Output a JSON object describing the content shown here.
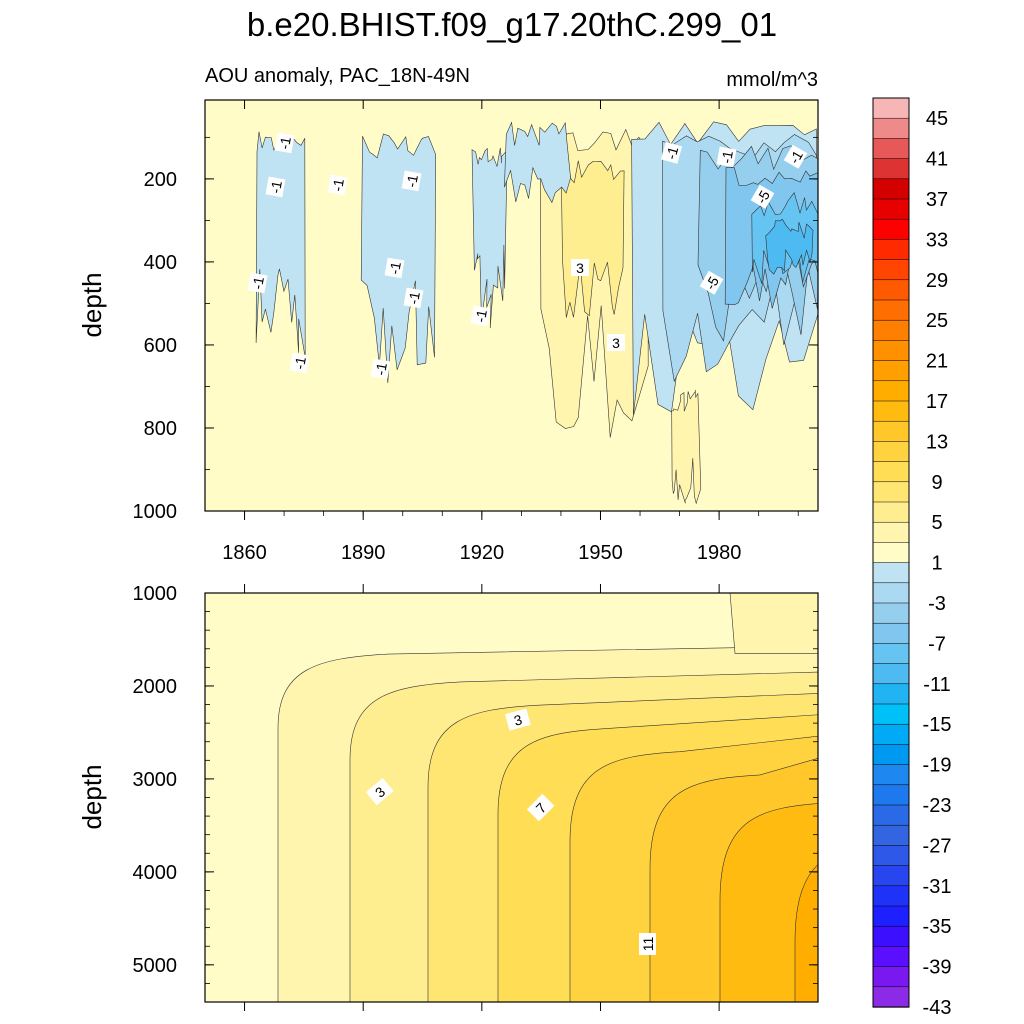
{
  "chart_data": [
    {
      "type": "heatmap",
      "title": "b.e20.BHIST.f09_g17.20thC.299_01",
      "subtitle": "AOU anomaly, PAC_18N-49N",
      "units": "mmol/m^3",
      "ylabel": "depth",
      "x_ticks": [
        "1860",
        "1890",
        "1920",
        "1950",
        "1980"
      ],
      "x_tick_values": [
        1860,
        1890,
        1920,
        1950,
        1980
      ],
      "xlim": [
        1850,
        2005
      ],
      "y_ticks": [
        "200",
        "400",
        "600",
        "800",
        "1000"
      ],
      "y_tick_values": [
        200,
        400,
        600,
        800,
        1000
      ],
      "ylim": [
        1000,
        10
      ],
      "contour_labels": [
        "-1",
        "-1",
        "-1",
        "-1",
        "-1",
        "-1",
        "-1",
        "-1",
        "-1",
        "-1",
        "-1",
        "-1",
        "-1",
        "-5",
        "-5",
        "3",
        "3"
      ],
      "blue_regions": [
        {
          "x0": 1863,
          "x1": 1875,
          "d0": 80,
          "d1": 640
        },
        {
          "x0": 1890,
          "x1": 1908,
          "d0": 90,
          "d1": 700
        },
        {
          "x0": 1918,
          "x1": 1926,
          "d0": 110,
          "d1": 560
        },
        {
          "x0": 1926,
          "x1": 1942,
          "d0": 60,
          "d1": 260
        },
        {
          "x0": 1958,
          "x1": 2005,
          "d0": 60,
          "d1": 840
        }
      ],
      "yellow_regions": [
        {
          "x0": 1935,
          "x1": 1962,
          "d0": 80,
          "d1": 830
        },
        {
          "x0": 1968,
          "x1": 1975,
          "d0": 700,
          "d1": 1000
        }
      ]
    },
    {
      "type": "heatmap",
      "ylabel": "depth",
      "xlim": [
        1850,
        2005
      ],
      "y_ticks": [
        "1000",
        "2000",
        "3000",
        "4000",
        "5000"
      ],
      "y_tick_values": [
        1000,
        2000,
        3000,
        4000,
        5000
      ],
      "ylim": [
        5400,
        1000
      ],
      "contour_labels": [
        "3",
        "3",
        "7",
        "11"
      ],
      "trend": "anomaly increases with time and depth, from 0 near 1850 to about 13 at depth by 2005"
    }
  ],
  "colorbar": {
    "labels": [
      "45",
      "41",
      "37",
      "33",
      "29",
      "25",
      "21",
      "17",
      "13",
      "9",
      "5",
      "1",
      "-3",
      "-7",
      "-11",
      "-15",
      "-19",
      "-23",
      "-27",
      "-31",
      "-35",
      "-39",
      "-43"
    ],
    "colors": [
      "#f7b6b6",
      "#ef8a8a",
      "#e75959",
      "#dd3333",
      "#d40000",
      "#e60000",
      "#ff0000",
      "#ff2a00",
      "#ff4500",
      "#ff5a00",
      "#ff6e00",
      "#ff8000",
      "#ff9000",
      "#ffa000",
      "#ffae00",
      "#ffbb10",
      "#ffc72a",
      "#ffd33f",
      "#ffdd55",
      "#ffe572",
      "#ffee90",
      "#fff5ae",
      "#fffcc8",
      "#bfe3f3",
      "#aad9f1",
      "#96ceee",
      "#80c6ef",
      "#66c4f2",
      "#4dbaf2",
      "#22b4f2",
      "#00c0f8",
      "#00aaf5",
      "#0099f2",
      "#1e88f0",
      "#1e78ee",
      "#2a6ae6",
      "#3365e0",
      "#2e58e8",
      "#2846f0",
      "#1e32f8",
      "#1e20ff",
      "#3c10ff",
      "#5a10ff",
      "#7a18f0",
      "#8d2ae8"
    ]
  }
}
